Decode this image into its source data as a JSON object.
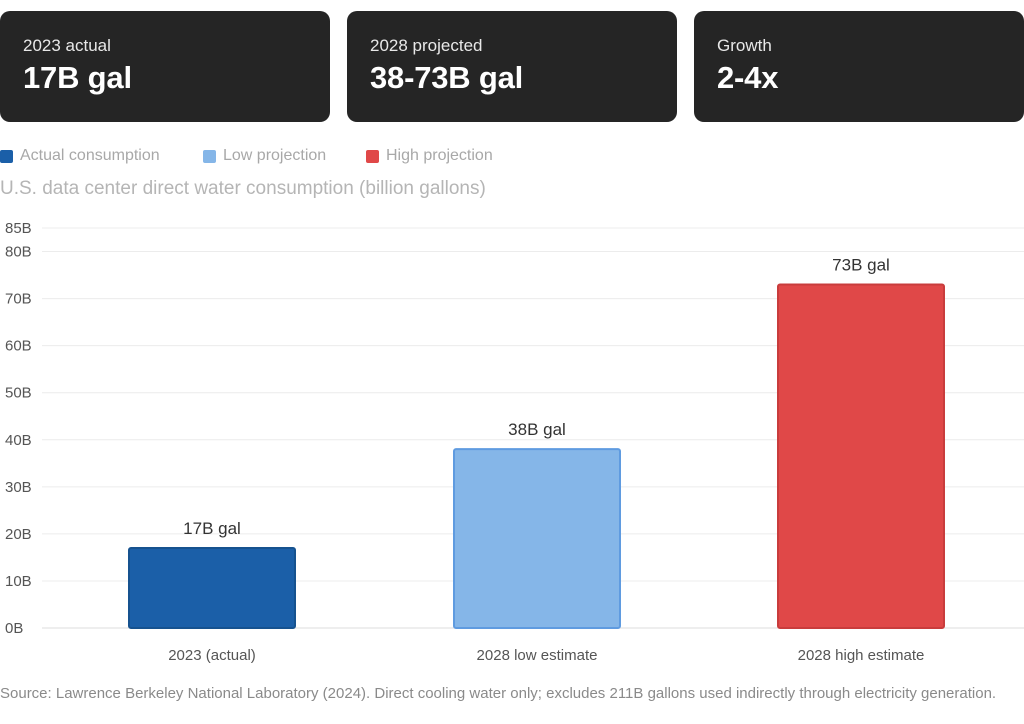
{
  "cards": [
    {
      "label": "2023 actual",
      "value": "17B gal"
    },
    {
      "label": "2028 projected",
      "value": "38-73B gal"
    },
    {
      "label": "Growth",
      "value": "2-4x"
    }
  ],
  "legend": [
    {
      "label": "Actual consumption",
      "color": "#1b5fa8"
    },
    {
      "label": "Low projection",
      "color": "#85b6e8"
    },
    {
      "label": "High projection",
      "color": "#e04848"
    }
  ],
  "chart_data": {
    "type": "bar",
    "title": "U.S. data center direct water consumption (billion gallons)",
    "categories": [
      "2023 (actual)",
      "2028 low estimate",
      "2028 high estimate"
    ],
    "values": [
      17,
      38,
      73
    ],
    "data_labels": [
      "17B gal",
      "38B gal",
      "73B gal"
    ],
    "colors": [
      "#1b5fa8",
      "#85b6e8",
      "#e04848"
    ],
    "border_colors": [
      "#16528f",
      "#5f9be0",
      "#c93c3c"
    ],
    "ylim": [
      0,
      85
    ],
    "yticks": [
      0,
      10,
      20,
      30,
      40,
      50,
      60,
      70,
      80,
      85
    ],
    "ytick_labels": [
      "0B",
      "10B",
      "20B",
      "30B",
      "40B",
      "50B",
      "60B",
      "70B",
      "80B",
      "85B"
    ],
    "grid": true,
    "legend_position": "top-left",
    "xlabel": "",
    "ylabel": ""
  },
  "footer": {
    "source": "Source: Lawrence Berkeley National Laboratory (2024). Direct cooling water only; excludes 211B gallons used indirectly through electricity generation."
  }
}
